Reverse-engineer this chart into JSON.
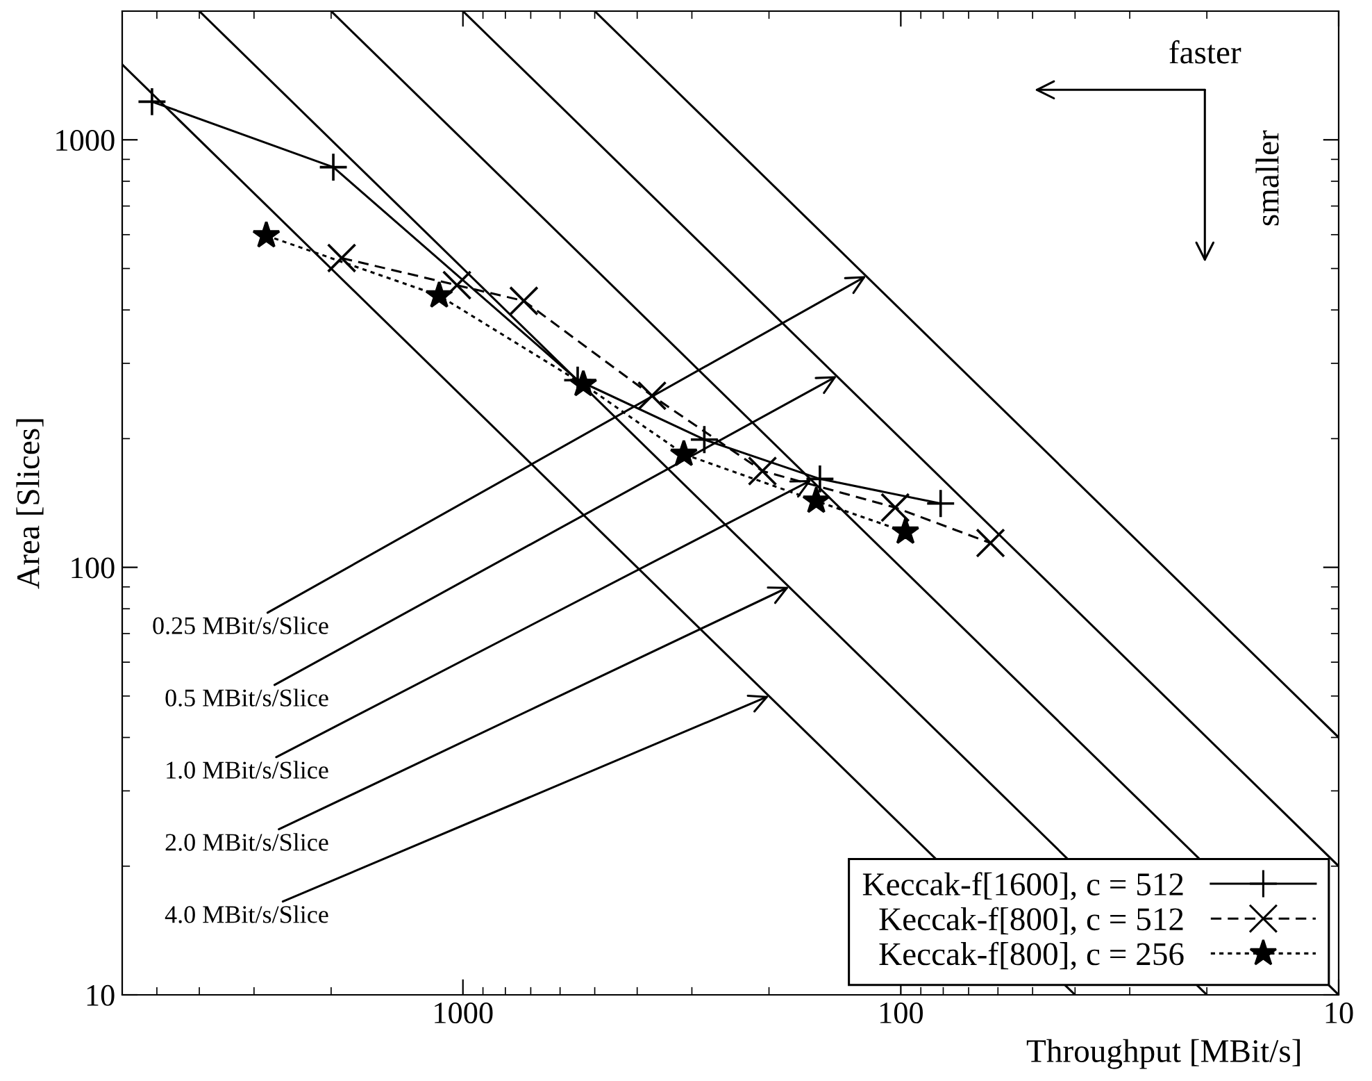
{
  "chart_data": {
    "type": "line",
    "xlabel": "Throughput [MBit/s]",
    "ylabel": "Area [Slices]",
    "log": "xy",
    "grid": false,
    "legend": "bottom right",
    "xlim": [
      6000,
      10
    ],
    "xticks": [
      1000,
      100,
      10
    ],
    "ylim": [
      10,
      2000
    ],
    "yticks": [
      10,
      100,
      1000
    ],
    "series": [
      {
        "name": "Keccak-f[1600], c = 512",
        "color": "#000000",
        "marker": "plus",
        "line_style": "solid",
        "x": [
          5130,
          1977,
          547,
          281,
          153,
          81.1
        ],
        "values": [
          1228,
          863,
          274,
          199,
          161,
          141
        ]
      },
      {
        "name": "Keccak-f[800], c = 512",
        "color": "#000000",
        "marker": "cross",
        "line_style": "dashed",
        "x": [
          1892,
          1032,
          726,
          370,
          207,
          103,
          62.4
        ],
        "values": [
          529,
          457,
          420,
          252,
          168,
          138,
          114
        ]
      },
      {
        "name": "Keccak-f[800], c = 256",
        "color": "#000000",
        "marker": "star",
        "line_style": "dotted",
        "x": [
          2812,
          1133,
          531,
          313,
          156,
          97.6
        ],
        "values": [
          597,
          432,
          268,
          184,
          143,
          121
        ]
      },
      {
        "color": "#000000",
        "marker": "none",
        "line_style": "solid",
        "x": [
          6000,
          40
        ],
        "values": [
          1500,
          10
        ]
      },
      {
        "color": "#000000",
        "marker": "none",
        "line_style": "solid",
        "x": [
          4000,
          20
        ],
        "values": [
          2000,
          10
        ]
      },
      {
        "color": "#000000",
        "marker": "none",
        "line_style": "solid",
        "x": [
          2000,
          10
        ],
        "values": [
          2000,
          10
        ]
      },
      {
        "color": "#000000",
        "marker": "none",
        "line_style": "solid",
        "x": [
          1000,
          10
        ],
        "values": [
          2000,
          20
        ]
      },
      {
        "color": "#000000",
        "marker": "none",
        "line_style": "solid",
        "x": [
          500,
          10
        ],
        "values": [
          2000,
          40
        ]
      }
    ],
    "annotations": [
      {
        "text": "0.25 MBit/s/Slice",
        "x": 120,
        "y": 480
      },
      {
        "text": "0.5 MBit/s/Slice",
        "x": 140,
        "y": 280
      },
      {
        "text": "1.0 MBit/s/Slice",
        "x": 160,
        "y": 160
      },
      {
        "text": "2.0 MBit/s/Slice",
        "x": 180,
        "y": 90
      },
      {
        "text": "4.0 MBit/s/Slice",
        "x": 200,
        "y": 50
      },
      "faster",
      "smaller"
    ]
  }
}
